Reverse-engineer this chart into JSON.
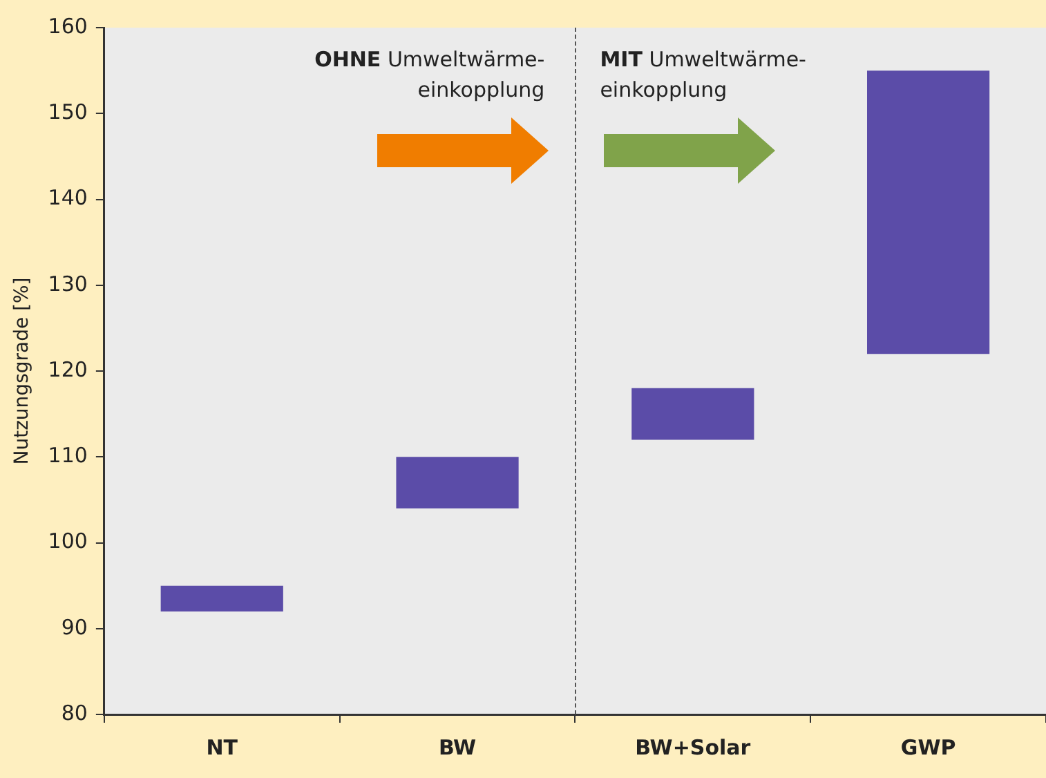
{
  "chart_data": {
    "type": "bar",
    "ylabel": "Nutzungsgrade [%]",
    "categories": [
      "NT",
      "BW",
      "BW+Solar",
      "GWP"
    ],
    "base": [
      92,
      104,
      112,
      122
    ],
    "values": [
      3,
      6,
      6,
      33
    ],
    "color": "#5b4ca8",
    "ylim": [
      80,
      160
    ],
    "yticks": [
      80,
      90,
      100,
      110,
      120,
      130,
      140,
      150,
      160
    ],
    "grid": false,
    "annotations": [
      "OHNE Umweltwärme-einkopplung",
      "MIT Umweltwärme-einkopplung"
    ]
  }
}
